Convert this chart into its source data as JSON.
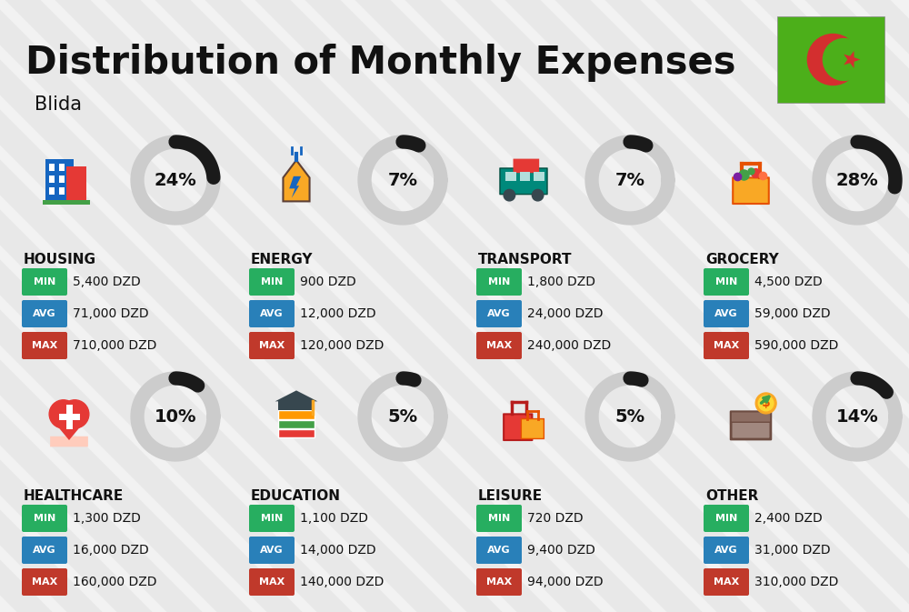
{
  "title": "Distribution of Monthly Expenses",
  "subtitle": "Blida",
  "background_color": "#f2f2f2",
  "categories": [
    {
      "name": "HOUSING",
      "percent": 24,
      "min": "5,400 DZD",
      "avg": "71,000 DZD",
      "max": "710,000 DZD",
      "row": 0,
      "col": 0
    },
    {
      "name": "ENERGY",
      "percent": 7,
      "min": "900 DZD",
      "avg": "12,000 DZD",
      "max": "120,000 DZD",
      "row": 0,
      "col": 1
    },
    {
      "name": "TRANSPORT",
      "percent": 7,
      "min": "1,800 DZD",
      "avg": "24,000 DZD",
      "max": "240,000 DZD",
      "row": 0,
      "col": 2
    },
    {
      "name": "GROCERY",
      "percent": 28,
      "min": "4,500 DZD",
      "avg": "59,000 DZD",
      "max": "590,000 DZD",
      "row": 0,
      "col": 3
    },
    {
      "name": "HEALTHCARE",
      "percent": 10,
      "min": "1,300 DZD",
      "avg": "16,000 DZD",
      "max": "160,000 DZD",
      "row": 1,
      "col": 0
    },
    {
      "name": "EDUCATION",
      "percent": 5,
      "min": "1,100 DZD",
      "avg": "14,000 DZD",
      "max": "140,000 DZD",
      "row": 1,
      "col": 1
    },
    {
      "name": "LEISURE",
      "percent": 5,
      "min": "720 DZD",
      "avg": "9,400 DZD",
      "max": "94,000 DZD",
      "row": 1,
      "col": 2
    },
    {
      "name": "OTHER",
      "percent": 14,
      "min": "2,400 DZD",
      "avg": "31,000 DZD",
      "max": "310,000 DZD",
      "row": 1,
      "col": 3
    }
  ],
  "min_color": "#27ae60",
  "avg_color": "#2980b9",
  "max_color": "#c0392b",
  "text_color": "#111111",
  "ring_filled_color": "#1a1a1a",
  "ring_empty_color": "#cccccc",
  "stripe_color": "#e0e0e0",
  "flag_green": "#4caf1a",
  "flag_red": "#d32f2f",
  "title_fontsize": 30,
  "subtitle_fontsize": 15,
  "category_fontsize": 11,
  "label_fontsize": 8,
  "value_fontsize": 10,
  "pct_fontsize": 14
}
